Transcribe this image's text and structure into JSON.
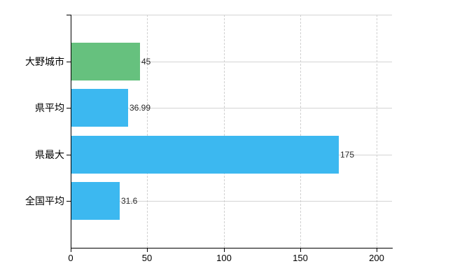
{
  "chart_data": {
    "type": "bar",
    "orientation": "horizontal",
    "title": "",
    "categories": [
      "大野城市",
      "県平均",
      "県最大",
      "全国平均"
    ],
    "values": [
      45,
      36.99,
      175,
      31.6
    ],
    "value_labels": [
      "45",
      "36.99",
      "175",
      "31.6"
    ],
    "series": [
      {
        "name": "value",
        "values": [
          45,
          36.99,
          175,
          31.6
        ]
      }
    ],
    "bar_colors": [
      "#66c17e",
      "#3cb8f0",
      "#3cb8f0",
      "#3cb8f0"
    ],
    "xlabel": "",
    "ylabel": "",
    "xlim": [
      0,
      210
    ],
    "x_ticks": [
      0,
      50,
      100,
      150,
      200
    ],
    "x_tick_labels": [
      "0",
      "50",
      "100",
      "150",
      "200"
    ],
    "grid": true,
    "legend_position": "none"
  },
  "colors": {
    "highlight_bar": "#66c17e",
    "default_bar": "#3cb8f0",
    "grid": "#d4d4d4",
    "axis": "#000000",
    "text": "#000000"
  }
}
